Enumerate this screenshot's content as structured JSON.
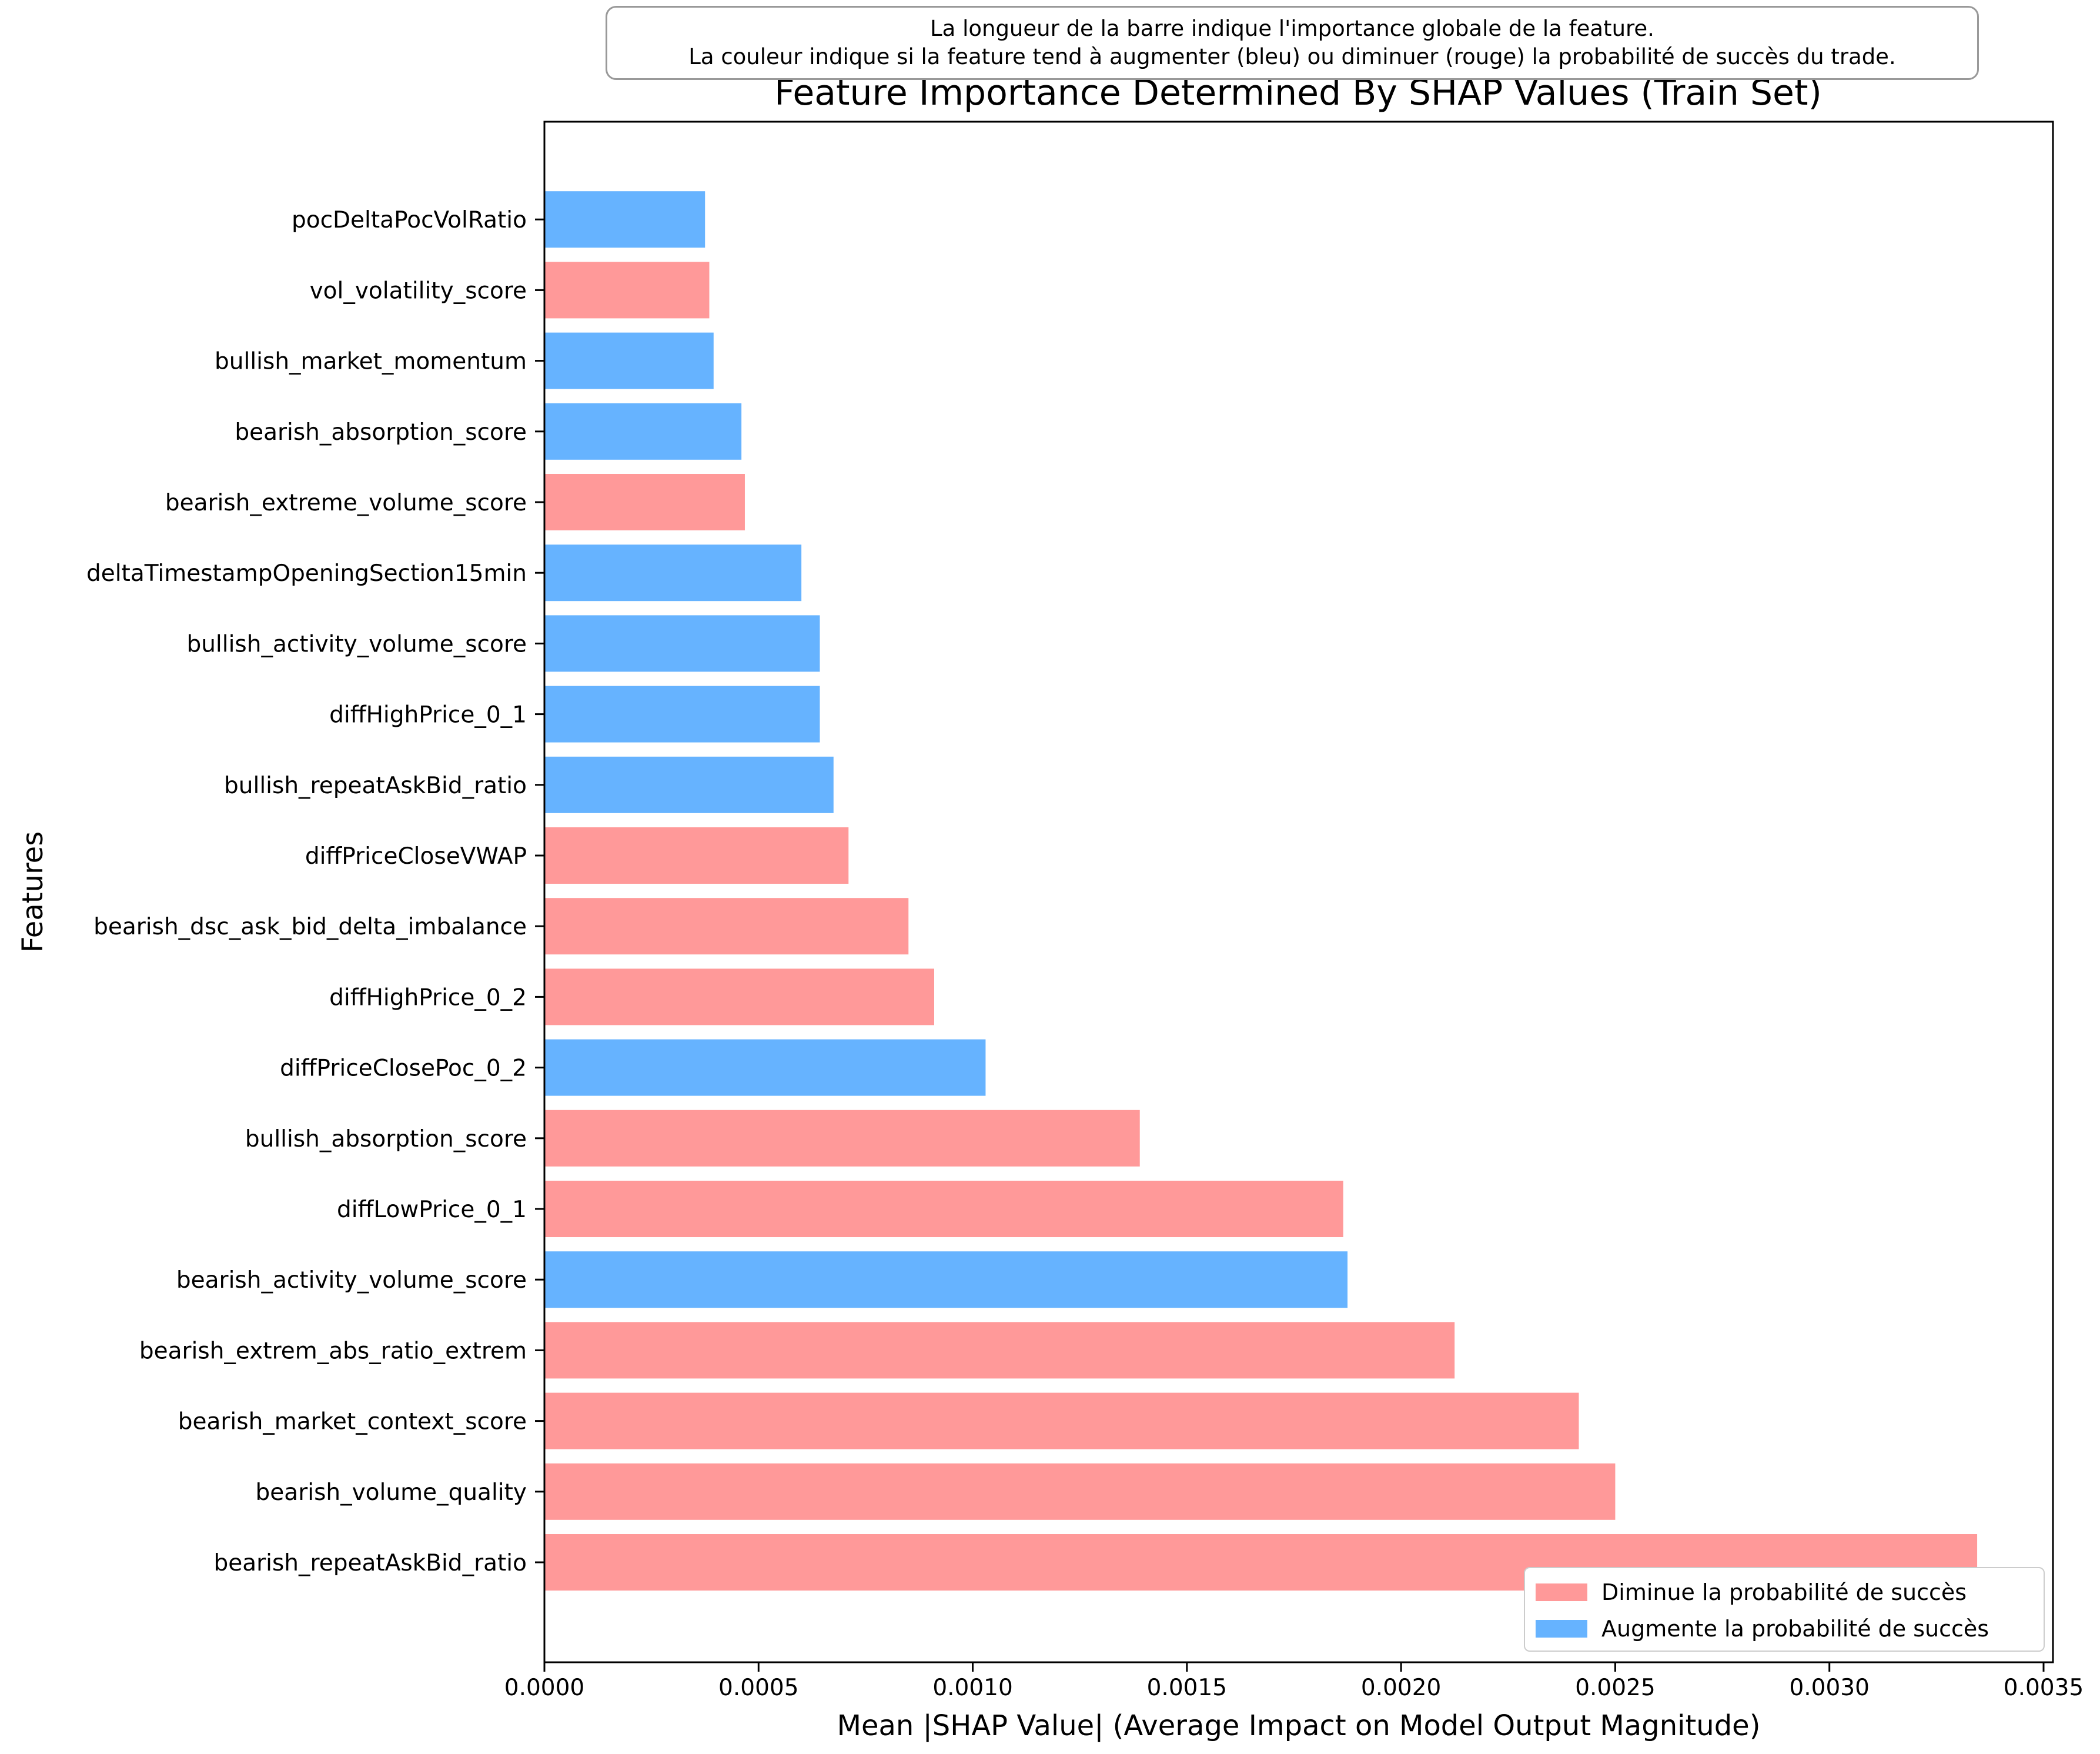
{
  "note": {
    "line1": "La longueur de la barre indique l'importance globale de la feature.",
    "line2": "La couleur indique si la feature tend à augmenter (bleu) ou diminuer (rouge) la probabilité de succès du trade."
  },
  "colors": {
    "decrease": "#ff9999",
    "increase": "#66b3ff"
  },
  "chart_data": {
    "type": "bar",
    "orientation": "horizontal",
    "title": "Feature Importance Determined By SHAP Values (Train Set)",
    "xlabel": "Mean |SHAP Value| (Average Impact on Model Output Magnitude)",
    "ylabel": "Features",
    "xlim": [
      0,
      0.0035
    ],
    "xticks": [
      "0.0000",
      "0.0005",
      "0.0010",
      "0.0015",
      "0.0020",
      "0.0025",
      "0.0030",
      "0.0035"
    ],
    "legend_position": "bottom-right",
    "legend": [
      {
        "label": "Diminue la probabilité de succès",
        "color_key": "decrease"
      },
      {
        "label": "Augmente la probabilité de succès",
        "color_key": "increase"
      }
    ],
    "bars": [
      {
        "feature": "bearish_repeatAskBid_ratio",
        "value": 0.003345,
        "effect": "decrease"
      },
      {
        "feature": "bearish_volume_quality",
        "value": 0.0025,
        "effect": "decrease"
      },
      {
        "feature": "bearish_market_context_score",
        "value": 0.002415,
        "effect": "decrease"
      },
      {
        "feature": "bearish_extrem_abs_ratio_extrem",
        "value": 0.002125,
        "effect": "decrease"
      },
      {
        "feature": "bearish_activity_volume_score",
        "value": 0.001875,
        "effect": "increase"
      },
      {
        "feature": "diffLowPrice_0_1",
        "value": 0.001865,
        "effect": "decrease"
      },
      {
        "feature": "bullish_absorption_score",
        "value": 0.00139,
        "effect": "decrease"
      },
      {
        "feature": "diffPriceClosePoc_0_2",
        "value": 0.00103,
        "effect": "increase"
      },
      {
        "feature": "diffHighPrice_0_2",
        "value": 0.00091,
        "effect": "decrease"
      },
      {
        "feature": "bearish_dsc_ask_bid_delta_imbalance",
        "value": 0.00085,
        "effect": "decrease"
      },
      {
        "feature": "diffPriceCloseVWAP",
        "value": 0.00071,
        "effect": "decrease"
      },
      {
        "feature": "bullish_repeatAskBid_ratio",
        "value": 0.000675,
        "effect": "increase"
      },
      {
        "feature": "diffHighPrice_0_1",
        "value": 0.000643,
        "effect": "increase"
      },
      {
        "feature": "bullish_activity_volume_score",
        "value": 0.000643,
        "effect": "increase"
      },
      {
        "feature": "deltaTimestampOpeningSection15min",
        "value": 0.0006,
        "effect": "increase"
      },
      {
        "feature": "bearish_extreme_volume_score",
        "value": 0.000468,
        "effect": "decrease"
      },
      {
        "feature": "bearish_absorption_score",
        "value": 0.00046,
        "effect": "increase"
      },
      {
        "feature": "bullish_market_momentum",
        "value": 0.000395,
        "effect": "increase"
      },
      {
        "feature": "vol_volatility_score",
        "value": 0.000385,
        "effect": "decrease"
      },
      {
        "feature": "pocDeltaPocVolRatio",
        "value": 0.000375,
        "effect": "increase"
      }
    ]
  }
}
